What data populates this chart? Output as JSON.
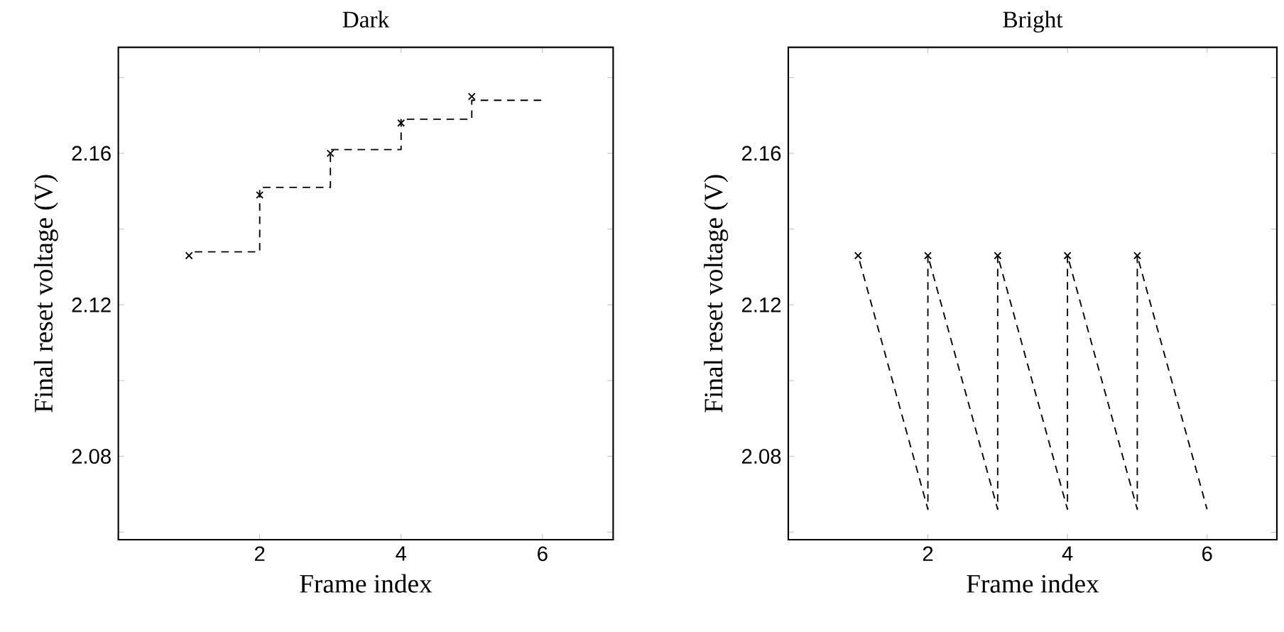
{
  "chart_data": [
    {
      "type": "line",
      "title": "Dark",
      "xlabel": "Frame index",
      "ylabel": "Final reset voltage (V)",
      "xlim": [
        0,
        7
      ],
      "ylim": [
        2.058,
        2.188
      ],
      "xticks": [
        2,
        4,
        6
      ],
      "yticks": [
        {
          "value": 2.06,
          "label": null
        },
        2.08,
        {
          "value": 2.1,
          "label": null
        },
        2.12,
        {
          "value": 2.14,
          "label": null
        },
        2.16,
        {
          "value": 2.18,
          "label": null
        }
      ],
      "series": [
        {
          "type": "step",
          "x": [
            1,
            2,
            3,
            4,
            5,
            6
          ],
          "values": [
            2.134,
            2.151,
            2.161,
            2.169,
            2.174,
            2.174
          ],
          "color": "#000000",
          "line_style": "dashed",
          "marker": "none"
        },
        {
          "type": "scatter",
          "x": [
            1,
            2,
            3,
            4,
            5
          ],
          "values": [
            2.133,
            2.149,
            2.16,
            2.168,
            2.175
          ],
          "color": "#000000",
          "marker": "cross"
        }
      ]
    },
    {
      "type": "line",
      "title": "Bright",
      "xlabel": "Frame index",
      "ylabel": "Final reset voltage (V)",
      "xlim": [
        0,
        7
      ],
      "ylim": [
        2.058,
        2.188
      ],
      "xticks": [
        2,
        4,
        6
      ],
      "yticks": [
        {
          "value": 2.06,
          "label": null
        },
        2.08,
        {
          "value": 2.1,
          "label": null
        },
        2.12,
        {
          "value": 2.14,
          "label": null
        },
        2.16,
        {
          "value": 2.18,
          "label": null
        }
      ],
      "series": [
        {
          "type": "line",
          "x": [
            1,
            2,
            2,
            3,
            3,
            4,
            4,
            5,
            5,
            6
          ],
          "values": [
            2.133,
            2.066,
            2.133,
            2.066,
            2.133,
            2.066,
            2.133,
            2.066,
            2.133,
            2.066
          ],
          "color": "#000000",
          "line_style": "dashed",
          "marker": "none"
        },
        {
          "type": "scatter",
          "x": [
            1,
            2,
            3,
            4,
            5
          ],
          "values": [
            2.133,
            2.133,
            2.133,
            2.133,
            2.133
          ],
          "color": "#000000",
          "marker": "cross"
        }
      ]
    }
  ]
}
